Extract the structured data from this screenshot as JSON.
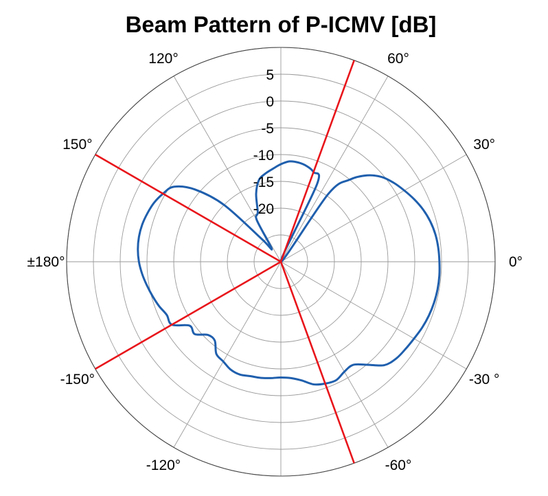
{
  "chart_data": {
    "type": "polar-line",
    "title": "Beam Pattern of P-ICMV [dB]",
    "angle_unit": "degrees",
    "angle_ticks": [
      {
        "angle": 0,
        "label": "0°"
      },
      {
        "angle": 30,
        "label": "30°"
      },
      {
        "angle": 60,
        "label": "60°"
      },
      {
        "angle": 90,
        "label": ""
      },
      {
        "angle": 120,
        "label": "120°"
      },
      {
        "angle": 150,
        "label": "150°"
      },
      {
        "angle": 180,
        "label": "±180°"
      },
      {
        "angle": -150,
        "label": "-150°"
      },
      {
        "angle": -120,
        "label": "-120°"
      },
      {
        "angle": -90,
        "label": ""
      },
      {
        "angle": -60,
        "label": "-60°"
      },
      {
        "angle": -30,
        "label": "-30 °"
      }
    ],
    "r_ticks": [
      -25,
      -20,
      -15,
      -10,
      -5,
      0,
      5,
      10
    ],
    "r_tick_labels": [
      {
        "value": -20,
        "label": "-20"
      },
      {
        "value": -15,
        "label": "-15"
      },
      {
        "value": -10,
        "label": "-10"
      },
      {
        "value": -5,
        "label": "-5"
      },
      {
        "value": 0,
        "label": "0"
      },
      {
        "value": 5,
        "label": "5"
      }
    ],
    "rlim": [
      -30,
      10
    ],
    "grid": true,
    "colors": {
      "pattern": "#1f5fad",
      "directions": "#e8151b",
      "grid": "#9a9a9a"
    },
    "series": [
      {
        "type": "line",
        "angles": [
          0,
          5,
          10,
          15,
          20,
          25,
          30,
          35,
          40,
          45,
          50,
          55,
          60,
          65,
          70,
          75,
          80,
          85,
          90,
          95,
          100,
          105,
          110,
          115,
          120,
          125,
          130,
          135,
          140,
          145,
          150,
          155,
          160,
          165,
          170,
          175,
          180,
          185,
          190,
          195,
          200,
          205,
          210,
          215,
          220,
          225,
          230,
          235,
          240,
          245,
          250,
          255,
          260,
          265,
          270,
          275,
          280,
          285,
          290,
          295,
          300,
          305,
          310,
          315,
          320,
          325,
          330,
          335,
          340,
          345,
          350,
          355
        ],
        "values_db": [
          -0.4,
          -0.5,
          -0.7,
          -1.1,
          -1.7,
          -2.5,
          -3.4,
          -4.3,
          -5.4,
          -7.2,
          -10.0,
          -14.5,
          -30.0,
          -14.0,
          -12.2,
          -11.5,
          -11.2,
          -11.2,
          -11.8,
          -12.6,
          -13.3,
          -14.2,
          -16.5,
          -19.8,
          -21.0,
          -27.0,
          -24.5,
          -15.0,
          -9.0,
          -5.6,
          -4.6,
          -3.9,
          -3.5,
          -3.2,
          -3.1,
          -3.2,
          -3.5,
          -4.0,
          -4.6,
          -5.2,
          -5.8,
          -6.5,
          -6.5,
          -9.2,
          -9.0,
          -10.7,
          -10.8,
          -9.0,
          -8.5,
          -7.8,
          -7.6,
          -7.9,
          -8.0,
          -8.2,
          -8.4,
          -8.2,
          -7.5,
          -6.3,
          -5.8,
          -5.6,
          -6.3,
          -6.5,
          -4.9,
          -2.7,
          -1.9,
          -1.6,
          -1.3,
          -0.9,
          -0.6,
          -0.4,
          -0.3,
          -0.3
        ]
      },
      {
        "type": "direction",
        "angle": 70
      },
      {
        "type": "direction",
        "angle": 150
      },
      {
        "type": "direction",
        "angle": -150
      },
      {
        "type": "direction",
        "angle": -70
      }
    ]
  }
}
